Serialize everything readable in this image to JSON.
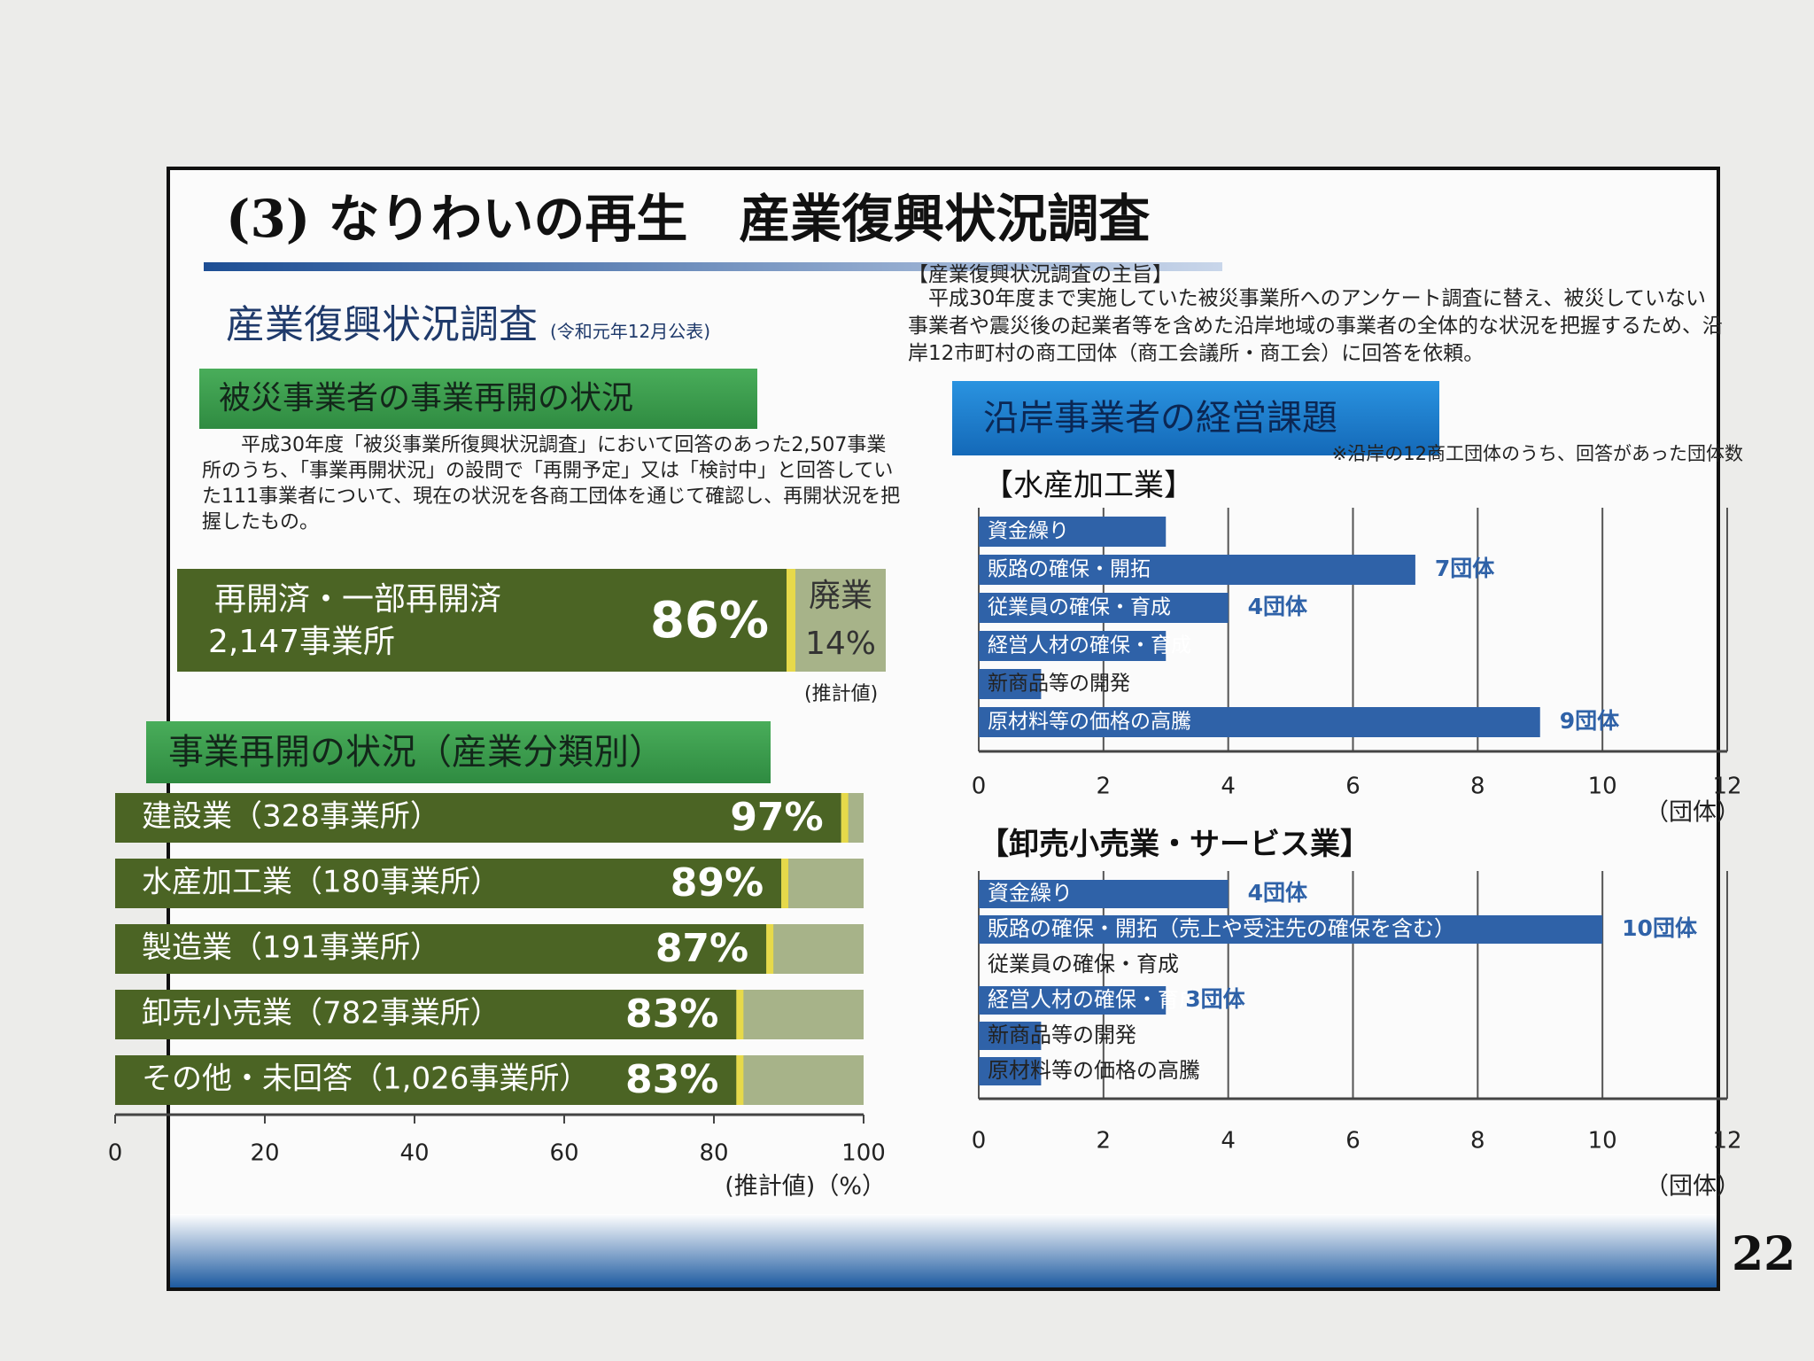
{
  "header": {
    "title": "(3) なりわいの再生　産業復興状況調査",
    "page_number": "22"
  },
  "survey": {
    "title": "産業復興状況調査",
    "note": "(令和元年12月公表)"
  },
  "left": {
    "section_title": "被災事業者の事業再開の状況",
    "paragraph": "平成30年度「被災事業所復興状況調査」において回答のあった2,507事業所のうち、「事業再開状況」の設問で「再開予定」又は「検討中」と回答していた111事業者について、現在の状況を各商工団体を通じて確認し、再開状況を把握したもの。",
    "summary": {
      "reopened_label": "再開済・一部再開済",
      "reopened_count": "2,147事業所",
      "reopened_value": 86,
      "reopened_value_label": "86%",
      "closed_label": "廃業",
      "closed_value": 14,
      "closed_value_label": "14%",
      "note": "(推計値)"
    }
  },
  "right": {
    "purpose_title": "【産業復興状況調査の主旨】",
    "purpose_text": "平成30年度まで実施していた被災事業所へのアンケート調査に替え、被災していない事業者や震災後の起業者等を含めた沿岸地域の事業者の全体的な状況を把握するため、沿岸12市町村の商工団体（商工会議所・商工会）に回答を依頼。",
    "section_title": "沿岸事業者の経営課題",
    "note": "※沿岸の12商工団体のうち、回答があった団体数"
  },
  "chart_data": [
    {
      "type": "bar",
      "orientation": "horizontal",
      "title": "事業再開の状況（産業分類別）",
      "categories": [
        "建設業（328事業所）",
        "水産加工業（180事業所）",
        "製造業（191事業所）",
        "卸売小売業（782事業所）",
        "その他・未回答（1,026事業所）"
      ],
      "values": [
        97,
        89,
        87,
        83,
        83
      ],
      "value_labels": [
        "97%",
        "89%",
        "87%",
        "83%",
        "83%"
      ],
      "color": "#4b6424",
      "remainder_color": "#a7b389",
      "xlim": [
        0,
        100
      ],
      "xticks": [
        0,
        20,
        40,
        60,
        80,
        100
      ],
      "x_label": "(推計値)（%）",
      "grid": false
    },
    {
      "type": "bar",
      "orientation": "horizontal",
      "title": "【水産加工業】",
      "categories": [
        "資金繰り",
        "販路の確保・開拓",
        "従業員の確保・育成",
        "経営人材の確保・育成",
        "新商品等の開発",
        "原材料等の価格の高騰"
      ],
      "values": [
        3,
        7,
        4,
        3,
        1,
        9
      ],
      "value_labels": [
        null,
        "7団体",
        "4団体",
        null,
        null,
        "9団体"
      ],
      "color": "#2f62a8",
      "xlim": [
        0,
        12
      ],
      "xticks": [
        0,
        2,
        4,
        6,
        8,
        10,
        12
      ],
      "x_label": "（団体）",
      "grid": true
    },
    {
      "type": "bar",
      "orientation": "horizontal",
      "title": "【卸売小売業・サービス業】",
      "categories": [
        "資金繰り",
        "販路の確保・開拓（売上や受注先の確保を含む）",
        "従業員の確保・育成",
        "経営人材の確保・育成",
        "新商品等の開発",
        "原材料等の価格の高騰"
      ],
      "values": [
        4,
        10,
        0,
        3,
        1,
        1
      ],
      "value_labels": [
        "4団体",
        "10団体",
        null,
        "3団体",
        null,
        null
      ],
      "color": "#2f62a8",
      "xlim": [
        0,
        12
      ],
      "xticks": [
        0,
        2,
        4,
        6,
        8,
        10,
        12
      ],
      "x_label": "（団体）",
      "grid": true
    }
  ]
}
